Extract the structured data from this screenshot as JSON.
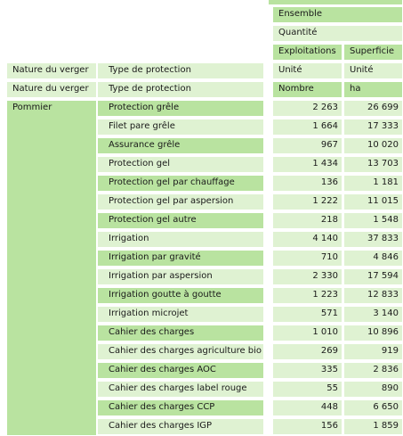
{
  "header": {
    "ensemble": "Ensemble",
    "quantite": "Quantité",
    "exploitations": "Exploitations",
    "superficie": "Superficie"
  },
  "dim_row1": {
    "nature_label": "Nature du verger",
    "type_label": "Type de protection",
    "unit_col1": "Unité",
    "unit_col2": "Unité"
  },
  "dim_row2": {
    "nature_label": "Nature du verger",
    "type_label": "Type de protection",
    "unit_col1": "Nombre",
    "unit_col2": "ha"
  },
  "group": {
    "label": "Pommier"
  },
  "rows": [
    {
      "label": "Protection grêle",
      "exploitations": "2 263",
      "superficie": "26 699"
    },
    {
      "label": "Filet pare grêle",
      "exploitations": "1 664",
      "superficie": "17 333"
    },
    {
      "label": "Assurance grêle",
      "exploitations": "967",
      "superficie": "10 020"
    },
    {
      "label": "Protection gel",
      "exploitations": "1 434",
      "superficie": "13 703"
    },
    {
      "label": "Protection gel par chauffage",
      "exploitations": "136",
      "superficie": "1 181"
    },
    {
      "label": "Protection gel par aspersion",
      "exploitations": "1 222",
      "superficie": "11 015"
    },
    {
      "label": "Protection gel autre",
      "exploitations": "218",
      "superficie": "1 548"
    },
    {
      "label": "Irrigation",
      "exploitations": "4 140",
      "superficie": "37 833"
    },
    {
      "label": "Irrigation par gravité",
      "exploitations": "710",
      "superficie": "4 846"
    },
    {
      "label": "Irrigation par aspersion",
      "exploitations": "2 330",
      "superficie": "17 594"
    },
    {
      "label": "Irrigation goutte à goutte",
      "exploitations": "1 223",
      "superficie": "12 833"
    },
    {
      "label": "Irrigation microjet",
      "exploitations": "571",
      "superficie": "3 140"
    },
    {
      "label": "Cahier des charges",
      "exploitations": "1 010",
      "superficie": "10 896"
    },
    {
      "label": "Cahier des charges agriculture bio",
      "exploitations": "269",
      "superficie": "919"
    },
    {
      "label": "Cahier des charges AOC",
      "exploitations": "335",
      "superficie": "2 836"
    },
    {
      "label": "Cahier des charges label rouge",
      "exploitations": "55",
      "superficie": "890"
    },
    {
      "label": "Cahier des charges CCP",
      "exploitations": "448",
      "superficie": "6 650"
    },
    {
      "label": "Cahier des charges IGP",
      "exploitations": "156",
      "superficie": "1 859"
    }
  ],
  "colors": {
    "dark_green": "#b9e3a0",
    "light_green": "#dff2d2"
  }
}
